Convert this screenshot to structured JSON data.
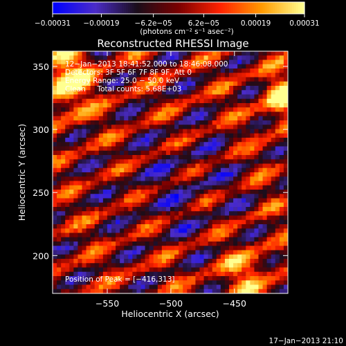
{
  "chart_data": {
    "type": "heatmap",
    "title": "Reconstructed RHESSI Image",
    "xlabel": "Heliocentric X (arcsec)",
    "ylabel": "Heliocentric Y (arcsec)",
    "xlim": [
      -593,
      -408
    ],
    "ylim": [
      170,
      362
    ],
    "x_ticks": [
      -550,
      -500,
      -450
    ],
    "y_ticks": [
      200,
      250,
      300,
      350
    ],
    "x_tick_labels": [
      "−550",
      "−500",
      "−450"
    ],
    "y_tick_labels": [
      "200",
      "250",
      "300",
      "350"
    ],
    "colorbar": {
      "range": [
        -0.00031,
        0.00031
      ],
      "ticks": [
        -0.00031,
        -0.00019,
        -6.2e-05,
        6.2e-05,
        0.00019,
        0.00031
      ],
      "tick_labels": [
        "−0.00031",
        "−0.00019",
        "−6.2e−05",
        "6.2e−05",
        "0.00019",
        "0.00031"
      ],
      "unit_label": "(photons cm⁻² s⁻¹ asec⁻²)",
      "colors": [
        "#0000ff",
        "#4b2cc8",
        "#1a0d1a",
        "#7a0000",
        "#ff2200",
        "#ff9a00",
        "#ffff90"
      ]
    },
    "annotations": [
      "12−Jan−2013 18:41:52.000 to 18:46:08.000",
      "Detectors: 3F 5F 6F 7F 8F 9F, Att 0",
      "Energy Range: 25.0 − 50.0 keV",
      "Clean     Total counts: 5.68E+03",
      "Position of Peak = [−416,313]"
    ],
    "peak": [
      -416,
      313
    ],
    "map_grid": {
      "cols": 56,
      "rows": 56
    }
  },
  "footer": {
    "timestamp": "17−Jan−2013 21:10"
  }
}
